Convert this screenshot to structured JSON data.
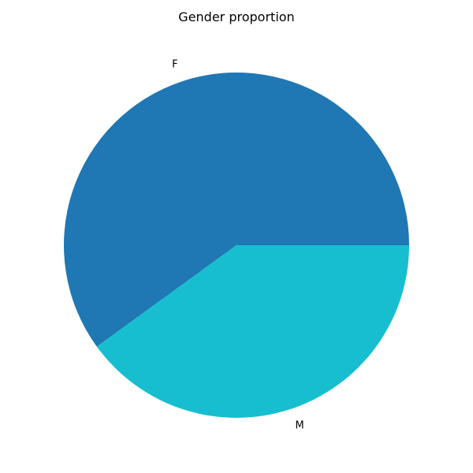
{
  "chart_data": {
    "type": "pie",
    "title": "Gender proportion",
    "categories": [
      "F",
      "M"
    ],
    "values": [
      60,
      40
    ],
    "colors": [
      "#1f77b4",
      "#17becf"
    ],
    "start_angle_degrees": 0,
    "direction": "counterclockwise",
    "legend": "none"
  }
}
